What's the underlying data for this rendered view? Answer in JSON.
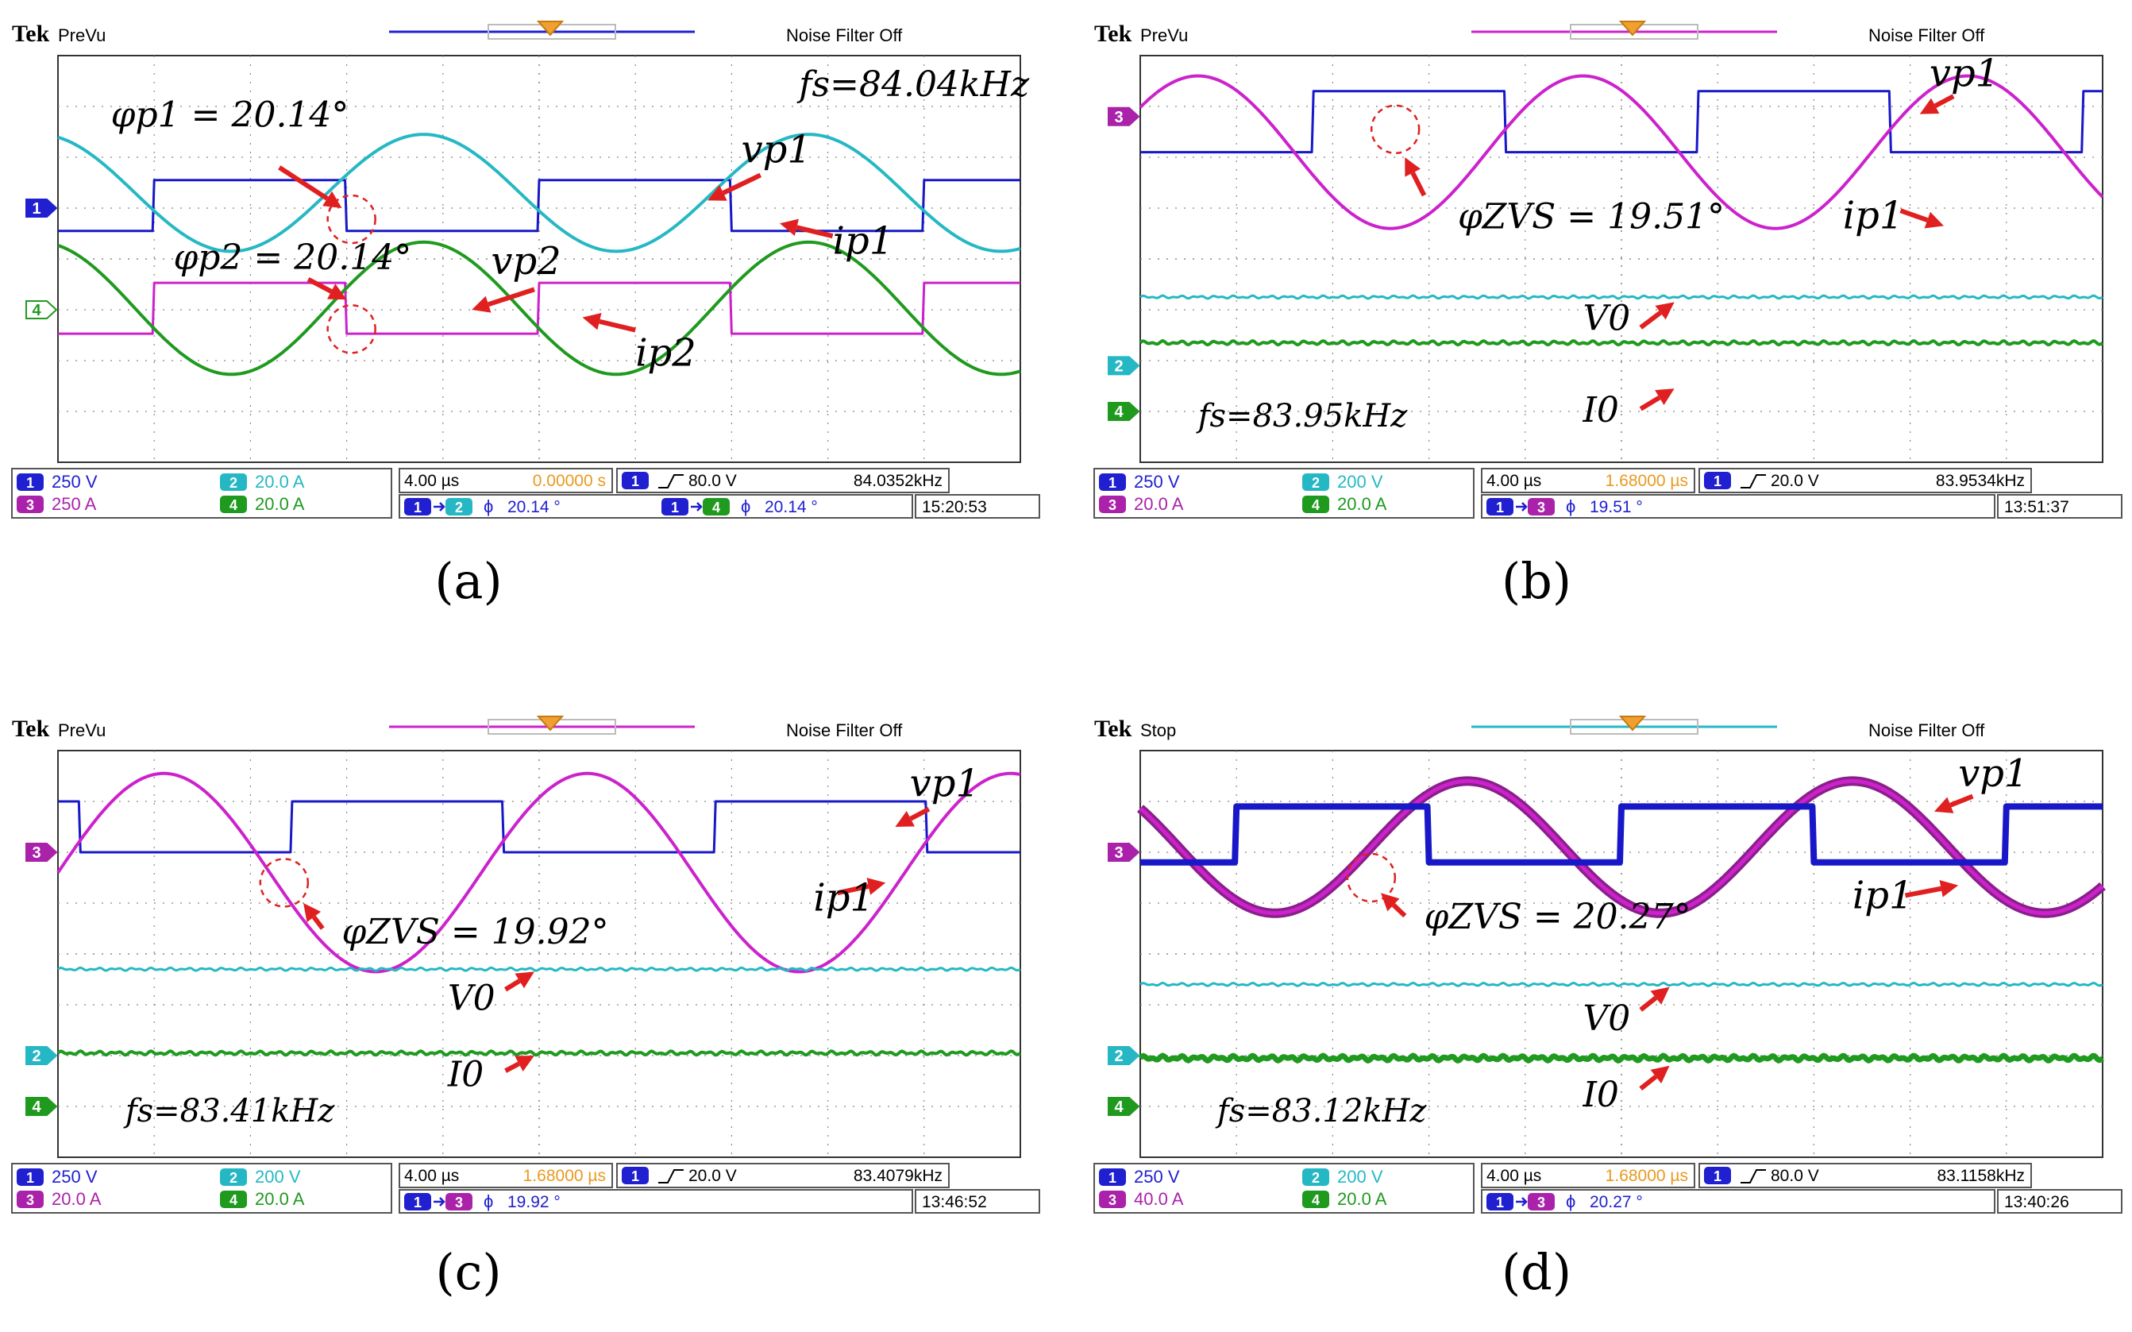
{
  "panels": [
    {
      "id": "a",
      "label": "(a)",
      "top": {
        "brand": "Tek",
        "state": "PreVu",
        "noise": "Noise Filter Off"
      },
      "trigger_line_color": "#2020d0",
      "chart_data": {
        "type": "line",
        "xlim": [
          0,
          10
        ],
        "ylim": [
          -4,
          4
        ],
        "grid": true,
        "time_per_div_us": 4.0,
        "markers": [
          {
            "ch": "1",
            "y": 1.0,
            "color": "#2020d0"
          },
          {
            "ch": "4",
            "y": -1.0,
            "color": "#1f9a1f"
          }
        ],
        "series": [
          {
            "kind": "square",
            "color": "#1818c8",
            "base": 1.05,
            "amp": 0.5,
            "period": 4.0,
            "phase": 0.25,
            "width": 3
          },
          {
            "kind": "sine",
            "color": "#25b8c4",
            "base": 1.3,
            "amp": 1.15,
            "period": 4.0,
            "phase": 0.7,
            "width": 4
          },
          {
            "kind": "square",
            "color": "#cc22cc",
            "base": -0.97,
            "amp": 0.5,
            "period": 4.0,
            "phase": 0.25,
            "width": 3
          },
          {
            "kind": "sine",
            "color": "#1f9a1f",
            "base": -0.97,
            "amp": 1.3,
            "period": 4.0,
            "phase": 0.7,
            "width": 4
          }
        ],
        "annotations": [
          {
            "text": "fs=84.04kHz",
            "x": 7.7,
            "y": 3.2,
            "size": 44
          },
          {
            "text": "φp1 = 20.14°",
            "x": 0.55,
            "y": 2.6,
            "size": 44
          },
          {
            "text": "vp1",
            "x": 7.1,
            "y": 1.9,
            "size": 48
          },
          {
            "text": "ip1",
            "x": 8.05,
            "y": 0.1,
            "size": 48
          },
          {
            "text": "φp2 = 20.14°",
            "x": 1.2,
            "y": -0.2,
            "size": 44
          },
          {
            "text": "vp2",
            "x": 4.5,
            "y": -0.3,
            "size": 48
          },
          {
            "text": "ip2",
            "x": 6.0,
            "y": -2.1,
            "size": 48
          }
        ],
        "circles": [
          {
            "x": 3.05,
            "y": 0.78
          },
          {
            "x": 3.05,
            "y": -1.38
          }
        ],
        "arrows": [
          {
            "x1": 2.3,
            "y1": 1.8,
            "x2": 2.95,
            "y2": 1.0
          },
          {
            "x1": 7.3,
            "y1": 1.65,
            "x2": 6.75,
            "y2": 1.15
          },
          {
            "x1": 8.05,
            "y1": 0.45,
            "x2": 7.5,
            "y2": 0.7
          },
          {
            "x1": 2.6,
            "y1": -0.4,
            "x2": 3.0,
            "y2": -0.8
          },
          {
            "x1": 4.95,
            "y1": -0.6,
            "x2": 4.3,
            "y2": -1.0
          },
          {
            "x1": 6.0,
            "y1": -1.4,
            "x2": 5.45,
            "y2": -1.15
          }
        ]
      },
      "status": {
        "ch1": "250 V",
        "ch2": "20.0 A",
        "ch3": "250 A",
        "ch4": "20.0 A",
        "time": "4.00 µs",
        "delay": "0.00000 s",
        "trig": "80.0 V",
        "freq": "84.0352kHz",
        "phase1_label": "ϕ",
        "phase1_value": "20.14 °",
        "phase1_from": "1",
        "phase1_to": "2",
        "phase2_label": "ϕ",
        "phase2_value": "20.14 °",
        "phase2_from": "1",
        "phase2_to": "4",
        "clock": "15:20:53"
      }
    },
    {
      "id": "b",
      "label": "(b)",
      "top": {
        "brand": "Tek",
        "state": "PreVu",
        "noise": "Noise Filter Off"
      },
      "trigger_line_color": "#cc22cc",
      "chart_data": {
        "type": "line",
        "xlim": [
          0,
          10
        ],
        "ylim": [
          -4,
          4
        ],
        "grid": true,
        "time_per_div_us": 4.0,
        "markers": [
          {
            "ch": "3",
            "y": 2.8,
            "color": "#aa22aa"
          },
          {
            "ch": "2",
            "y": -2.1,
            "color": "#25b8c4"
          },
          {
            "ch": "4",
            "y": -3.0,
            "color": "#1f9a1f"
          }
        ],
        "series": [
          {
            "kind": "square",
            "color": "#1818c8",
            "base": 2.7,
            "amp": 0.6,
            "period": 4.0,
            "phase": 0.45,
            "width": 3
          },
          {
            "kind": "sine",
            "color": "#cc22cc",
            "base": 2.1,
            "amp": 1.5,
            "period": 4.0,
            "phase": 0.9,
            "width": 4
          },
          {
            "kind": "flat",
            "color": "#25b8c4",
            "base": -0.75,
            "amp": 0.03,
            "width": 3
          },
          {
            "kind": "flat",
            "color": "#1f9a1f",
            "base": -1.65,
            "amp": 0.04,
            "width": 4
          }
        ],
        "annotations": [
          {
            "text": "vp1",
            "x": 8.2,
            "y": 3.4,
            "size": 48
          },
          {
            "text": "φZVS = 19.51°",
            "x": 3.3,
            "y": 0.6,
            "size": 44
          },
          {
            "text": "ip1",
            "x": 7.3,
            "y": 0.6,
            "size": 48
          },
          {
            "text": "V0",
            "x": 4.6,
            "y": -1.4,
            "size": 44
          },
          {
            "text": "fs=83.95kHz",
            "x": 0.6,
            "y": -3.3,
            "size": 40
          },
          {
            "text": "I0",
            "x": 4.6,
            "y": -3.2,
            "size": 44
          }
        ],
        "circles": [
          {
            "x": 2.65,
            "y": 2.55
          }
        ],
        "arrows": [
          {
            "x1": 8.45,
            "y1": 3.2,
            "x2": 8.1,
            "y2": 2.85
          },
          {
            "x1": 2.95,
            "y1": 1.25,
            "x2": 2.75,
            "y2": 2.0
          },
          {
            "x1": 7.9,
            "y1": 0.95,
            "x2": 8.35,
            "y2": 0.65
          },
          {
            "x1": 5.2,
            "y1": -1.35,
            "x2": 5.55,
            "y2": -0.85
          },
          {
            "x1": 5.2,
            "y1": -2.95,
            "x2": 5.55,
            "y2": -2.55
          }
        ]
      },
      "status": {
        "ch1": "250 V",
        "ch2": "200 V",
        "ch3": "20.0 A",
        "ch4": "20.0 A",
        "time": "4.00 µs",
        "delay": "1.68000 µs",
        "trig": "20.0 V",
        "freq": "83.9534kHz",
        "phase1_label": "ϕ",
        "phase1_value": "19.51 °",
        "phase1_from": "1",
        "phase1_to": "3",
        "clock": "13:51:37"
      }
    },
    {
      "id": "c",
      "label": "(c)",
      "top": {
        "brand": "Tek",
        "state": "PreVu",
        "noise": "Noise Filter Off"
      },
      "trigger_line_color": "#cc22cc",
      "chart_data": {
        "type": "line",
        "xlim": [
          0,
          10
        ],
        "ylim": [
          -4,
          4
        ],
        "grid": true,
        "time_per_div_us": 4.0,
        "markers": [
          {
            "ch": "3",
            "y": 2.0,
            "color": "#aa22aa"
          },
          {
            "ch": "2",
            "y": -2.0,
            "color": "#25b8c4"
          },
          {
            "ch": "4",
            "y": -3.0,
            "color": "#1f9a1f"
          }
        ],
        "series": [
          {
            "kind": "square",
            "color": "#1818c8",
            "base": 2.5,
            "amp": 0.5,
            "period": 4.4,
            "phase": 0.55,
            "width": 3
          },
          {
            "kind": "sine",
            "color": "#cc22cc",
            "base": 1.6,
            "amp": 1.95,
            "period": 4.4,
            "phase": 0.0,
            "width": 4
          },
          {
            "kind": "flat",
            "color": "#25b8c4",
            "base": -0.3,
            "amp": 0.03,
            "width": 3
          },
          {
            "kind": "flat",
            "color": "#1f9a1f",
            "base": -1.95,
            "amp": 0.04,
            "width": 4
          }
        ],
        "annotations": [
          {
            "text": "vp1",
            "x": 8.85,
            "y": 3.1,
            "size": 48
          },
          {
            "text": "φZVS = 19.92°",
            "x": 2.95,
            "y": 0.2,
            "size": 44
          },
          {
            "text": "ip1",
            "x": 7.85,
            "y": 0.85,
            "size": 48
          },
          {
            "text": "V0",
            "x": 4.05,
            "y": -1.1,
            "size": 44
          },
          {
            "text": "fs=83.41kHz",
            "x": 0.7,
            "y": -3.3,
            "size": 40
          },
          {
            "text": "I0",
            "x": 4.05,
            "y": -2.6,
            "size": 44
          }
        ],
        "circles": [
          {
            "x": 2.35,
            "y": 1.4
          }
        ],
        "arrows": [
          {
            "x1": 9.05,
            "y1": 2.85,
            "x2": 8.7,
            "y2": 2.5
          },
          {
            "x1": 2.75,
            "y1": 0.5,
            "x2": 2.55,
            "y2": 1.0
          },
          {
            "x1": 8.1,
            "y1": 1.2,
            "x2": 8.6,
            "y2": 1.4
          },
          {
            "x1": 4.65,
            "y1": -0.7,
            "x2": 4.95,
            "y2": -0.35
          },
          {
            "x1": 4.65,
            "y1": -2.3,
            "x2": 4.95,
            "y2": -2.0
          }
        ]
      },
      "status": {
        "ch1": "250 V",
        "ch2": "200 V",
        "ch3": "20.0 A",
        "ch4": "20.0 A",
        "time": "4.00 µs",
        "delay": "1.68000 µs",
        "trig": "20.0 V",
        "freq": "83.4079kHz",
        "phase1_label": "ϕ",
        "phase1_value": "19.92 °",
        "phase1_from": "1",
        "phase1_to": "3",
        "clock": "13:46:52"
      }
    },
    {
      "id": "d",
      "label": "(d)",
      "top": {
        "brand": "Tek",
        "state": "Stop",
        "noise": "Noise Filter Off"
      },
      "trigger_line_color": "#25b8c4",
      "chart_data": {
        "type": "line",
        "xlim": [
          0,
          10
        ],
        "ylim": [
          -4,
          4
        ],
        "grid": true,
        "time_per_div_us": 4.0,
        "markers": [
          {
            "ch": "3",
            "y": 2.0,
            "color": "#aa22aa"
          },
          {
            "ch": "2",
            "y": -2.0,
            "color": "#25b8c4"
          },
          {
            "ch": "4",
            "y": -3.0,
            "color": "#1f9a1f"
          }
        ],
        "series": [
          {
            "kind": "sine",
            "color": "#8a1f8a",
            "base": 2.1,
            "amp": 1.3,
            "period": 4.0,
            "phase": 0.6,
            "width": 12
          },
          {
            "kind": "sine",
            "color": "#cc22cc",
            "base": 2.1,
            "amp": 1.3,
            "period": 4.0,
            "phase": 0.6,
            "width": 5
          },
          {
            "kind": "square",
            "color": "#1818c8",
            "base": 2.35,
            "amp": 0.55,
            "period": 4.0,
            "phase": 0.25,
            "width": 8
          },
          {
            "kind": "flat",
            "color": "#25b8c4",
            "base": -0.6,
            "amp": 0.03,
            "width": 3
          },
          {
            "kind": "flat",
            "color": "#1f9a1f",
            "base": -2.05,
            "amp": 0.05,
            "width": 7
          }
        ],
        "annotations": [
          {
            "text": "vp1",
            "x": 8.5,
            "y": 3.3,
            "size": 48
          },
          {
            "text": "φZVS = 20.27°",
            "x": 2.95,
            "y": 0.5,
            "size": 44
          },
          {
            "text": "ip1",
            "x": 7.4,
            "y": 0.9,
            "size": 48
          },
          {
            "text": "V0",
            "x": 4.6,
            "y": -1.5,
            "size": 44
          },
          {
            "text": "fs=83.12kHz",
            "x": 0.8,
            "y": -3.3,
            "size": 40
          },
          {
            "text": "I0",
            "x": 4.6,
            "y": -3.0,
            "size": 44
          }
        ],
        "circles": [
          {
            "x": 2.4,
            "y": 1.5
          }
        ],
        "arrows": [
          {
            "x1": 8.65,
            "y1": 3.1,
            "x2": 8.25,
            "y2": 2.8
          },
          {
            "x1": 2.75,
            "y1": 0.75,
            "x2": 2.5,
            "y2": 1.2
          },
          {
            "x1": 7.95,
            "y1": 1.15,
            "x2": 8.5,
            "y2": 1.35
          },
          {
            "x1": 5.2,
            "y1": -1.1,
            "x2": 5.5,
            "y2": -0.65
          },
          {
            "x1": 5.2,
            "y1": -2.65,
            "x2": 5.5,
            "y2": -2.2
          }
        ]
      },
      "status": {
        "ch1": "250 V",
        "ch2": "200 V",
        "ch3": "40.0 A",
        "ch4": "20.0 A",
        "time": "4.00 µs",
        "delay": "1.68000 µs",
        "trig": "80.0 V",
        "freq": "83.1158kHz",
        "phase1_label": "ϕ",
        "phase1_value": "20.27 °",
        "phase1_from": "1",
        "phase1_to": "3",
        "clock": "13:40:26"
      }
    }
  ]
}
